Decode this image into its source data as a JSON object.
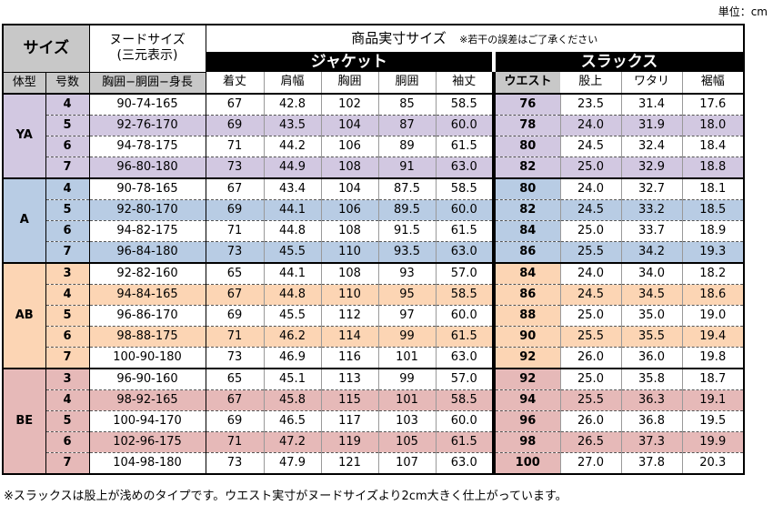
{
  "unit_label": "単位：cm",
  "header": {
    "size": "サイズ",
    "nude_line1": "ヌードサイズ",
    "nude_line2": "(三元表示)",
    "product": "商品実寸サイズ",
    "product_note": "※若干の誤差はご了承ください",
    "jacket": "ジャケット",
    "slacks": "スラックス",
    "cols": {
      "body_type": "体型",
      "number": "号数",
      "nude": "胸囲−胴囲−身長",
      "length": "着丈",
      "shoulder": "肩幅",
      "chest": "胸囲",
      "waist_j": "胴囲",
      "sleeve": "袖丈",
      "waist_s": "ウエスト",
      "rise": "股上",
      "thigh": "ワタリ",
      "hem": "裾幅"
    }
  },
  "groups": [
    {
      "type": "YA",
      "color": "#d2c8e1",
      "rows": [
        {
          "no": "4",
          "nude": "90-74-165",
          "len": "67",
          "sh": "42.8",
          "ch": "102",
          "wj": "85",
          "sl": "58.5",
          "ws": "76",
          "ri": "23.5",
          "th": "31.4",
          "he": "17.6"
        },
        {
          "no": "5",
          "nude": "92-76-170",
          "len": "69",
          "sh": "43.5",
          "ch": "104",
          "wj": "87",
          "sl": "60.0",
          "ws": "78",
          "ri": "24.0",
          "th": "31.9",
          "he": "18.0"
        },
        {
          "no": "6",
          "nude": "94-78-175",
          "len": "71",
          "sh": "44.2",
          "ch": "106",
          "wj": "89",
          "sl": "61.5",
          "ws": "80",
          "ri": "24.5",
          "th": "32.4",
          "he": "18.4"
        },
        {
          "no": "7",
          "nude": "96-80-180",
          "len": "73",
          "sh": "44.9",
          "ch": "108",
          "wj": "91",
          "sl": "63.0",
          "ws": "82",
          "ri": "25.0",
          "th": "32.9",
          "he": "18.8"
        }
      ]
    },
    {
      "type": "A",
      "color": "#b8cce4",
      "rows": [
        {
          "no": "4",
          "nude": "90-78-165",
          "len": "67",
          "sh": "43.4",
          "ch": "104",
          "wj": "87.5",
          "sl": "58.5",
          "ws": "80",
          "ri": "24.0",
          "th": "32.7",
          "he": "18.1"
        },
        {
          "no": "5",
          "nude": "92-80-170",
          "len": "69",
          "sh": "44.1",
          "ch": "106",
          "wj": "89.5",
          "sl": "60.0",
          "ws": "82",
          "ri": "24.5",
          "th": "33.2",
          "he": "18.5"
        },
        {
          "no": "6",
          "nude": "94-82-175",
          "len": "71",
          "sh": "44.8",
          "ch": "108",
          "wj": "91.5",
          "sl": "61.5",
          "ws": "84",
          "ri": "25.0",
          "th": "33.7",
          "he": "18.9"
        },
        {
          "no": "7",
          "nude": "96-84-180",
          "len": "73",
          "sh": "45.5",
          "ch": "110",
          "wj": "93.5",
          "sl": "63.0",
          "ws": "86",
          "ri": "25.5",
          "th": "34.2",
          "he": "19.3"
        }
      ]
    },
    {
      "type": "AB",
      "color": "#fcd5b4",
      "rows": [
        {
          "no": "3",
          "nude": "92-82-160",
          "len": "65",
          "sh": "44.1",
          "ch": "108",
          "wj": "93",
          "sl": "57.0",
          "ws": "84",
          "ri": "24.0",
          "th": "34.0",
          "he": "18.2"
        },
        {
          "no": "4",
          "nude": "94-84-165",
          "len": "67",
          "sh": "44.8",
          "ch": "110",
          "wj": "95",
          "sl": "58.5",
          "ws": "86",
          "ri": "24.5",
          "th": "34.5",
          "he": "18.6"
        },
        {
          "no": "5",
          "nude": "96-86-170",
          "len": "69",
          "sh": "45.5",
          "ch": "112",
          "wj": "97",
          "sl": "60.0",
          "ws": "88",
          "ri": "25.0",
          "th": "35.0",
          "he": "19.0"
        },
        {
          "no": "6",
          "nude": "98-88-175",
          "len": "71",
          "sh": "46.2",
          "ch": "114",
          "wj": "99",
          "sl": "61.5",
          "ws": "90",
          "ri": "25.5",
          "th": "35.5",
          "he": "19.4"
        },
        {
          "no": "7",
          "nude": "100-90-180",
          "len": "73",
          "sh": "46.9",
          "ch": "116",
          "wj": "101",
          "sl": "63.0",
          "ws": "92",
          "ri": "26.0",
          "th": "36.0",
          "he": "19.8"
        }
      ]
    },
    {
      "type": "BE",
      "color": "#e6b9b8",
      "rows": [
        {
          "no": "3",
          "nude": "96-90-160",
          "len": "65",
          "sh": "45.1",
          "ch": "113",
          "wj": "99",
          "sl": "57.0",
          "ws": "92",
          "ri": "25.0",
          "th": "35.8",
          "he": "18.7"
        },
        {
          "no": "4",
          "nude": "98-92-165",
          "len": "67",
          "sh": "45.8",
          "ch": "115",
          "wj": "101",
          "sl": "58.5",
          "ws": "94",
          "ri": "25.5",
          "th": "36.3",
          "he": "19.1"
        },
        {
          "no": "5",
          "nude": "100-94-170",
          "len": "69",
          "sh": "46.5",
          "ch": "117",
          "wj": "103",
          "sl": "60.0",
          "ws": "96",
          "ri": "26.0",
          "th": "36.8",
          "he": "19.5"
        },
        {
          "no": "6",
          "nude": "102-96-175",
          "len": "71",
          "sh": "47.2",
          "ch": "119",
          "wj": "105",
          "sl": "61.5",
          "ws": "98",
          "ri": "26.5",
          "th": "37.3",
          "he": "19.9"
        },
        {
          "no": "7",
          "nude": "104-98-180",
          "len": "73",
          "sh": "47.9",
          "ch": "121",
          "wj": "107",
          "sl": "63.0",
          "ws": "100",
          "ri": "27.0",
          "th": "37.8",
          "he": "20.3"
        }
      ]
    }
  ],
  "footnote": "※スラックスは股上が浅めのタイプです。ウエスト実寸がヌードサイズより2cm大きく仕上がっています。"
}
